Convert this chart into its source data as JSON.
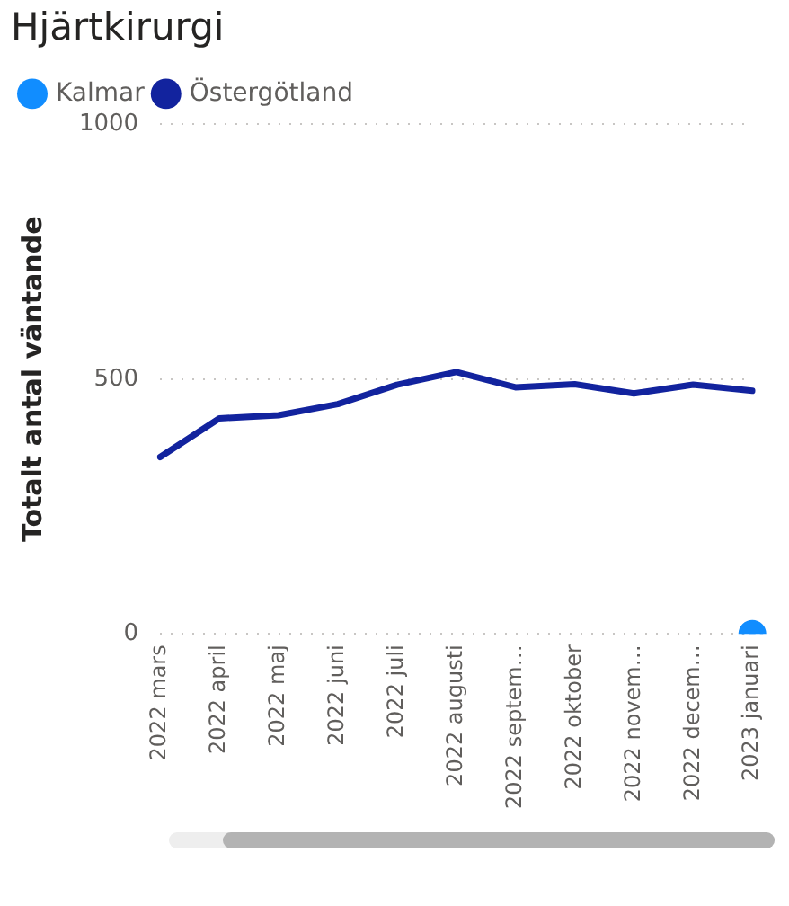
{
  "chart_data": {
    "type": "line",
    "title": "Hjärtkirurgi",
    "ylabel": "Totalt antal väntande",
    "categories": [
      "2022 mars",
      "2022 april",
      "2022 maj",
      "2022 juni",
      "2022 juli",
      "2022 augusti",
      "2022 septem…",
      "2022 oktober",
      "2022 novem…",
      "2022 decem…",
      "2023 januari"
    ],
    "series": [
      {
        "name": "Kalmar",
        "color": "#118dff",
        "marker": "circle",
        "values": [
          null,
          null,
          null,
          null,
          null,
          null,
          null,
          null,
          null,
          null,
          0
        ]
      },
      {
        "name": "Östergötland",
        "color": "#12239e",
        "marker": "none",
        "values": [
          347,
          423,
          429,
          451,
          489,
          514,
          484,
          490,
          472,
          489,
          477
        ]
      }
    ],
    "ylim": [
      0,
      1000
    ],
    "yticks": [
      0,
      500,
      1000
    ],
    "grid": "y",
    "legend": "top left",
    "line_style": "solid"
  }
}
